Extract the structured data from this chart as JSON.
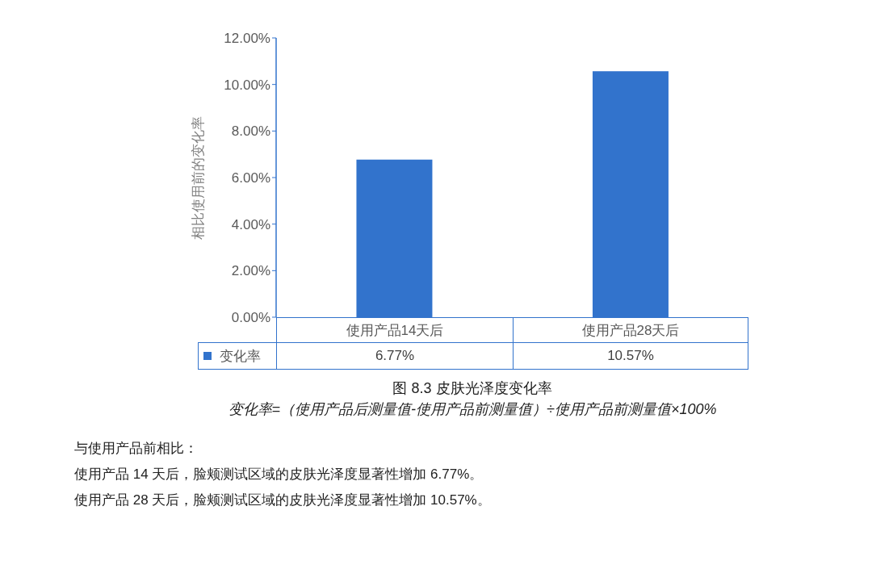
{
  "chart_data": {
    "type": "bar",
    "title": "图 8.3 皮肤光泽度变化率",
    "subtitle": "变化率=（使用产品后测量值-使用产品前测量值）÷使用产品前测量值×100%",
    "ylabel": "相比使用前的变化率",
    "categories": [
      "使用产品14天后",
      "使用产品28天后"
    ],
    "series": [
      {
        "name": "变化率",
        "color": "#3273cc",
        "values": [
          6.77,
          10.57
        ],
        "value_labels": [
          "6.77%",
          "10.57%"
        ]
      }
    ],
    "ylim": [
      0,
      12
    ],
    "yticks": [
      {
        "value": 0,
        "label": "0.00%"
      },
      {
        "value": 2,
        "label": "2.00%"
      },
      {
        "value": 4,
        "label": "4.00%"
      },
      {
        "value": 6,
        "label": "6.00%"
      },
      {
        "value": 8,
        "label": "8.00%"
      },
      {
        "value": 10,
        "label": "10.00%"
      },
      {
        "value": 12,
        "label": "12.00%"
      }
    ],
    "grid": false,
    "legend": "bottom",
    "annotations": [
      "与使用产品前相比：",
      "使用产品 14 天后，脸颊测试区域的皮肤光泽度显著性增加 6.77%。",
      "使用产品 28 天后，脸颊测试区域的皮肤光泽度显著性增加 10.57%。"
    ]
  }
}
